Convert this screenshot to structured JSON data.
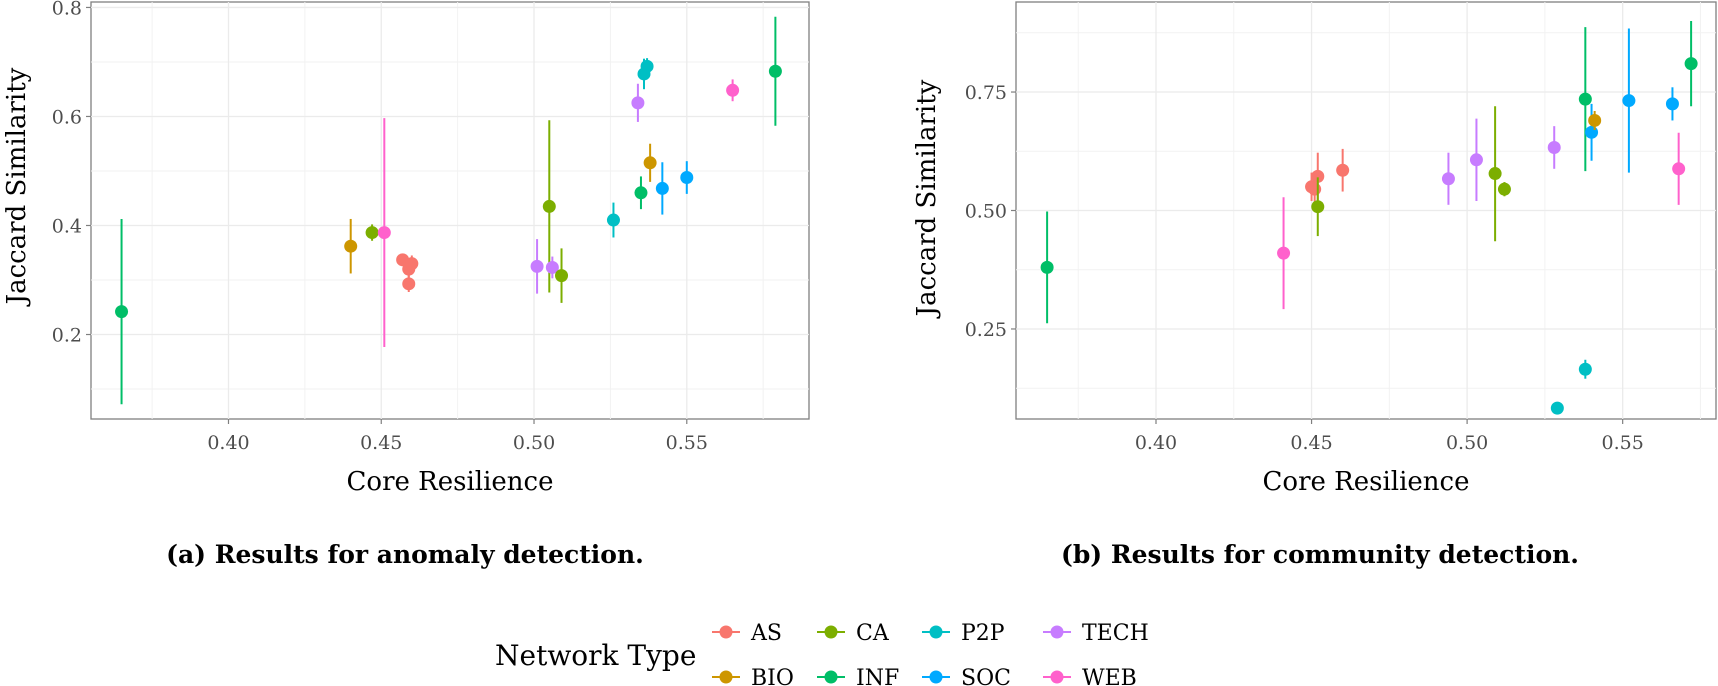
{
  "chart_data": [
    {
      "type": "scatter",
      "xlabel": "Core Resilience",
      "ylabel": "Jaccard Similarity",
      "caption": "(a) Results for anomaly detection.",
      "xlim": [
        0.355,
        0.59
      ],
      "ylim": [
        0.045,
        0.81
      ],
      "xticks": [
        0.4,
        0.45,
        0.5,
        0.55
      ],
      "xtick_labels": [
        "0.40",
        "0.45",
        "0.50",
        "0.55"
      ],
      "yticks": [
        0.2,
        0.4,
        0.6,
        0.8
      ],
      "ytick_labels": [
        "0.2",
        "0.4",
        "0.6",
        "0.8"
      ],
      "grid": true,
      "points": [
        {
          "type": "INF",
          "x": 0.365,
          "y": 0.242,
          "lo": 0.072,
          "hi": 0.412
        },
        {
          "type": "BIO",
          "x": 0.44,
          "y": 0.362,
          "lo": 0.312,
          "hi": 0.412
        },
        {
          "type": "CA",
          "x": 0.447,
          "y": 0.387,
          "lo": 0.372,
          "hi": 0.402
        },
        {
          "type": "WEB",
          "x": 0.451,
          "y": 0.387,
          "lo": 0.177,
          "hi": 0.597
        },
        {
          "type": "AS",
          "x": 0.457,
          "y": 0.337,
          "lo": 0.327,
          "hi": 0.347
        },
        {
          "type": "AS",
          "x": 0.459,
          "y": 0.32,
          "lo": 0.305,
          "hi": 0.335
        },
        {
          "type": "AS",
          "x": 0.46,
          "y": 0.33,
          "lo": 0.315,
          "hi": 0.345
        },
        {
          "type": "AS",
          "x": 0.459,
          "y": 0.293,
          "lo": 0.278,
          "hi": 0.308
        },
        {
          "type": "TECH",
          "x": 0.501,
          "y": 0.325,
          "lo": 0.275,
          "hi": 0.375
        },
        {
          "type": "CA",
          "x": 0.505,
          "y": 0.435,
          "lo": 0.277,
          "hi": 0.593
        },
        {
          "type": "TECH",
          "x": 0.506,
          "y": 0.323,
          "lo": 0.303,
          "hi": 0.343
        },
        {
          "type": "CA",
          "x": 0.509,
          "y": 0.308,
          "lo": 0.258,
          "hi": 0.358
        },
        {
          "type": "P2P",
          "x": 0.526,
          "y": 0.41,
          "lo": 0.378,
          "hi": 0.442
        },
        {
          "type": "TECH",
          "x": 0.534,
          "y": 0.625,
          "lo": 0.59,
          "hi": 0.66
        },
        {
          "type": "INF",
          "x": 0.535,
          "y": 0.46,
          "lo": 0.43,
          "hi": 0.49
        },
        {
          "type": "P2P",
          "x": 0.536,
          "y": 0.678,
          "lo": 0.65,
          "hi": 0.706
        },
        {
          "type": "P2P",
          "x": 0.537,
          "y": 0.692,
          "lo": 0.677,
          "hi": 0.707
        },
        {
          "type": "BIO",
          "x": 0.538,
          "y": 0.515,
          "lo": 0.48,
          "hi": 0.55
        },
        {
          "type": "SOC",
          "x": 0.542,
          "y": 0.468,
          "lo": 0.42,
          "hi": 0.516
        },
        {
          "type": "SOC",
          "x": 0.55,
          "y": 0.488,
          "lo": 0.458,
          "hi": 0.518
        },
        {
          "type": "WEB",
          "x": 0.565,
          "y": 0.648,
          "lo": 0.628,
          "hi": 0.668
        },
        {
          "type": "INF",
          "x": 0.579,
          "y": 0.683,
          "lo": 0.583,
          "hi": 0.783
        }
      ]
    },
    {
      "type": "scatter",
      "xlabel": "Core Resilience",
      "ylabel": "Jaccard Similarity",
      "caption": "(b) Results for community detection.",
      "xlim": [
        0.355,
        0.58
      ],
      "ylim": [
        0.06,
        0.94
      ],
      "xticks": [
        0.4,
        0.45,
        0.5,
        0.55
      ],
      "xtick_labels": [
        "0.40",
        "0.45",
        "0.50",
        "0.55"
      ],
      "yticks": [
        0.25,
        0.5,
        0.75
      ],
      "ytick_labels": [
        "0.25",
        "0.50",
        "0.75"
      ],
      "grid": true,
      "points": [
        {
          "type": "INF",
          "x": 0.365,
          "y": 0.38,
          "lo": 0.262,
          "hi": 0.498
        },
        {
          "type": "WEB",
          "x": 0.441,
          "y": 0.41,
          "lo": 0.292,
          "hi": 0.528
        },
        {
          "type": "AS",
          "x": 0.45,
          "y": 0.55,
          "lo": 0.52,
          "hi": 0.58
        },
        {
          "type": "AS",
          "x": 0.451,
          "y": 0.545,
          "lo": 0.515,
          "hi": 0.575
        },
        {
          "type": "AS",
          "x": 0.452,
          "y": 0.572,
          "lo": 0.522,
          "hi": 0.622
        },
        {
          "type": "CA",
          "x": 0.452,
          "y": 0.508,
          "lo": 0.446,
          "hi": 0.57
        },
        {
          "type": "AS",
          "x": 0.46,
          "y": 0.585,
          "lo": 0.54,
          "hi": 0.63
        },
        {
          "type": "TECH",
          "x": 0.494,
          "y": 0.567,
          "lo": 0.512,
          "hi": 0.622
        },
        {
          "type": "TECH",
          "x": 0.503,
          "y": 0.607,
          "lo": 0.52,
          "hi": 0.694
        },
        {
          "type": "CA",
          "x": 0.509,
          "y": 0.578,
          "lo": 0.435,
          "hi": 0.72
        },
        {
          "type": "CA",
          "x": 0.512,
          "y": 0.545,
          "lo": 0.53,
          "hi": 0.56
        },
        {
          "type": "TECH",
          "x": 0.528,
          "y": 0.633,
          "lo": 0.588,
          "hi": 0.678
        },
        {
          "type": "P2P",
          "x": 0.529,
          "y": 0.083,
          "lo": 0.083,
          "hi": 0.083
        },
        {
          "type": "P2P",
          "x": 0.538,
          "y": 0.165,
          "lo": 0.145,
          "hi": 0.185
        },
        {
          "type": "INF",
          "x": 0.538,
          "y": 0.735,
          "lo": 0.583,
          "hi": 0.887
        },
        {
          "type": "SOC",
          "x": 0.54,
          "y": 0.665,
          "lo": 0.605,
          "hi": 0.725
        },
        {
          "type": "BIO",
          "x": 0.541,
          "y": 0.69,
          "lo": 0.67,
          "hi": 0.71
        },
        {
          "type": "SOC",
          "x": 0.552,
          "y": 0.732,
          "lo": 0.58,
          "hi": 0.884
        },
        {
          "type": "SOC",
          "x": 0.566,
          "y": 0.725,
          "lo": 0.69,
          "hi": 0.76
        },
        {
          "type": "WEB",
          "x": 0.568,
          "y": 0.588,
          "lo": 0.512,
          "hi": 0.664
        },
        {
          "type": "INF",
          "x": 0.572,
          "y": 0.81,
          "lo": 0.72,
          "hi": 0.9
        }
      ]
    }
  ],
  "legend": {
    "title": "Network Type",
    "items": [
      {
        "key": "AS",
        "label": "AS",
        "color": "#F8766D"
      },
      {
        "key": "CA",
        "label": "CA",
        "color": "#7CAE00"
      },
      {
        "key": "P2P",
        "label": "P2P",
        "color": "#00BFC4"
      },
      {
        "key": "TECH",
        "label": "TECH",
        "color": "#C77CFF"
      },
      {
        "key": "BIO",
        "label": "BIO",
        "color": "#CD9600"
      },
      {
        "key": "INF",
        "label": "INF",
        "color": "#00BE67"
      },
      {
        "key": "SOC",
        "label": "SOC",
        "color": "#00A9FF"
      },
      {
        "key": "WEB",
        "label": "WEB",
        "color": "#FF61CC"
      }
    ]
  }
}
